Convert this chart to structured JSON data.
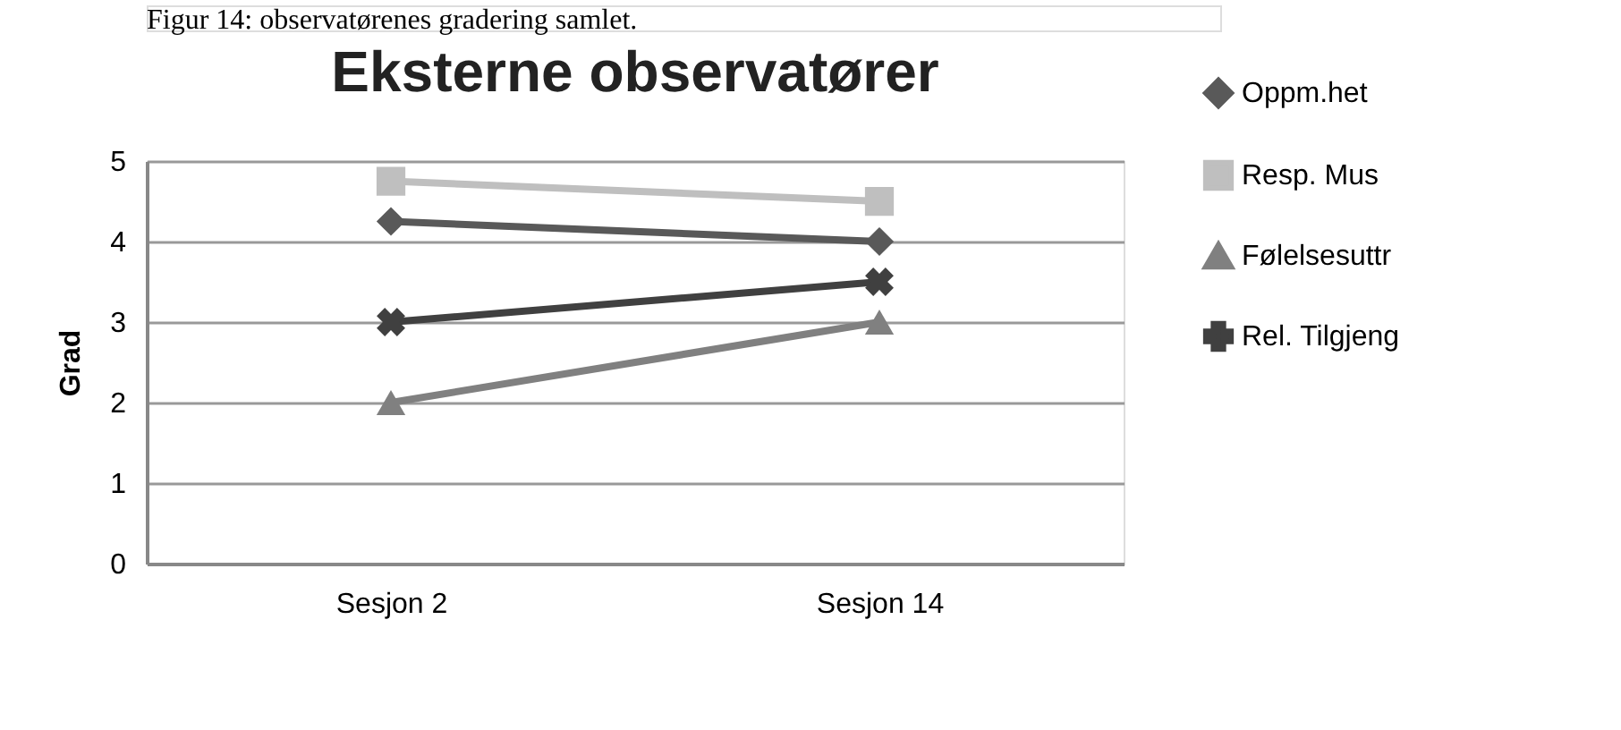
{
  "chart_data": {
    "type": "line",
    "title": "Eksterne observatører",
    "ylabel": "Grad",
    "annotations": [
      "Figur 14: observatørenes gradering samlet."
    ],
    "categories": [
      "Sesjon 2",
      "Sesjon 14"
    ],
    "series": [
      {
        "name": "Oppm.het",
        "color": "#595959",
        "marker": "diamond",
        "values": [
          4.25,
          4
        ]
      },
      {
        "name": "Resp. Mus",
        "color": "#bfbfbf",
        "marker": "square",
        "values": [
          4.75,
          4.5
        ]
      },
      {
        "name": "Følelsesuttr",
        "color": "#808080",
        "marker": "triangle",
        "values": [
          2,
          3
        ]
      },
      {
        "name": "Rel. Tilgjeng",
        "color": "#404040",
        "marker": "cross",
        "values": [
          3,
          3.5
        ]
      }
    ],
    "ylim": [
      0,
      5
    ],
    "yticks": [
      0,
      1,
      2,
      3,
      4,
      5
    ],
    "grid": "y",
    "legend": "right",
    "line_style": "solid"
  }
}
